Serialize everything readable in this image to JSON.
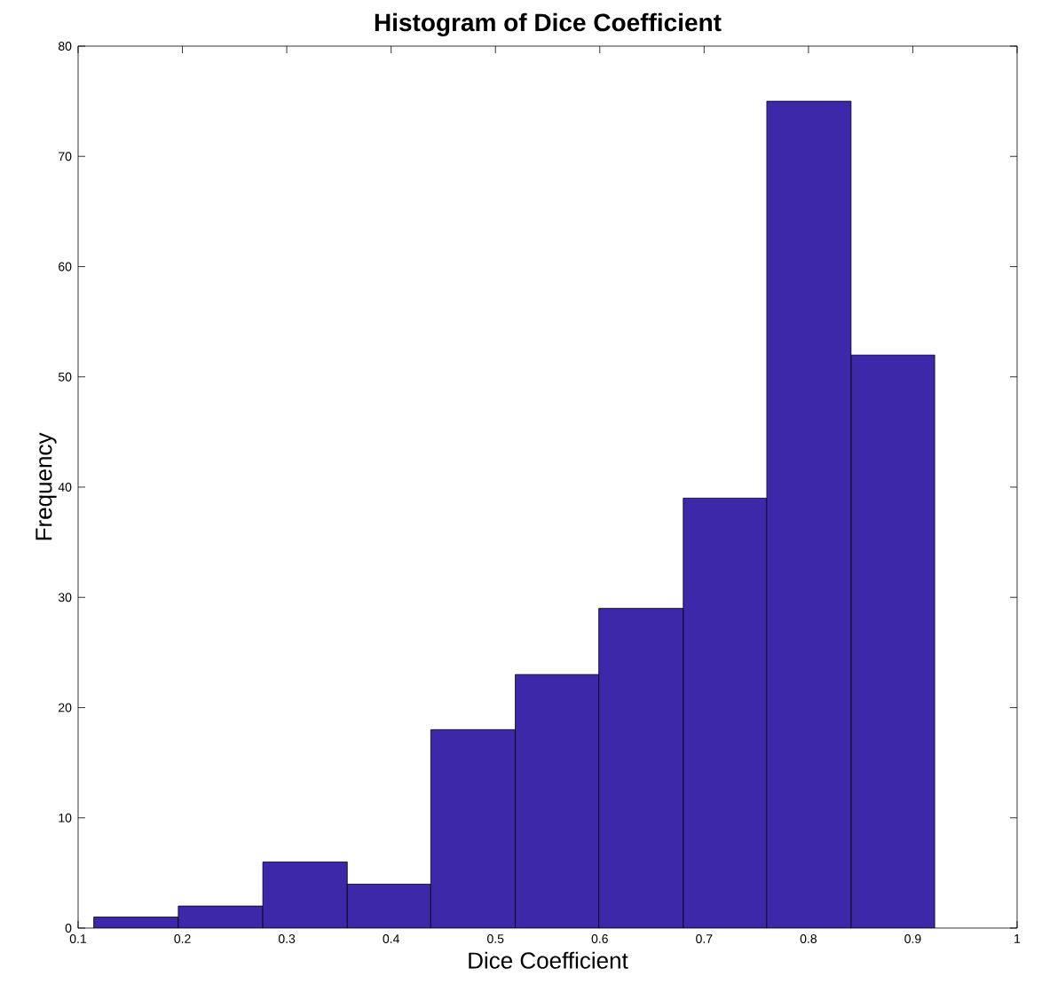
{
  "chart_data": {
    "type": "histogram",
    "title": "Histogram of Dice Coefficient",
    "xlabel": "Dice Coefficient",
    "ylabel": "Frequency",
    "bins": [
      0.115,
      0.196,
      0.277,
      0.358,
      0.438,
      0.519,
      0.599,
      0.68,
      0.76,
      0.841,
      0.921
    ],
    "values": [
      1,
      2,
      6,
      4,
      18,
      23,
      29,
      39,
      75,
      52
    ],
    "color": "#3c28a8",
    "xlim": [
      0.1,
      1
    ],
    "ylim": [
      0,
      80
    ],
    "xticks": [
      0.1,
      0.2,
      0.3,
      0.4,
      0.5,
      0.6,
      0.7,
      0.8,
      0.9,
      1
    ],
    "yticks": [
      0,
      10,
      20,
      30,
      40,
      50,
      60,
      70,
      80
    ],
    "grid": false
  }
}
